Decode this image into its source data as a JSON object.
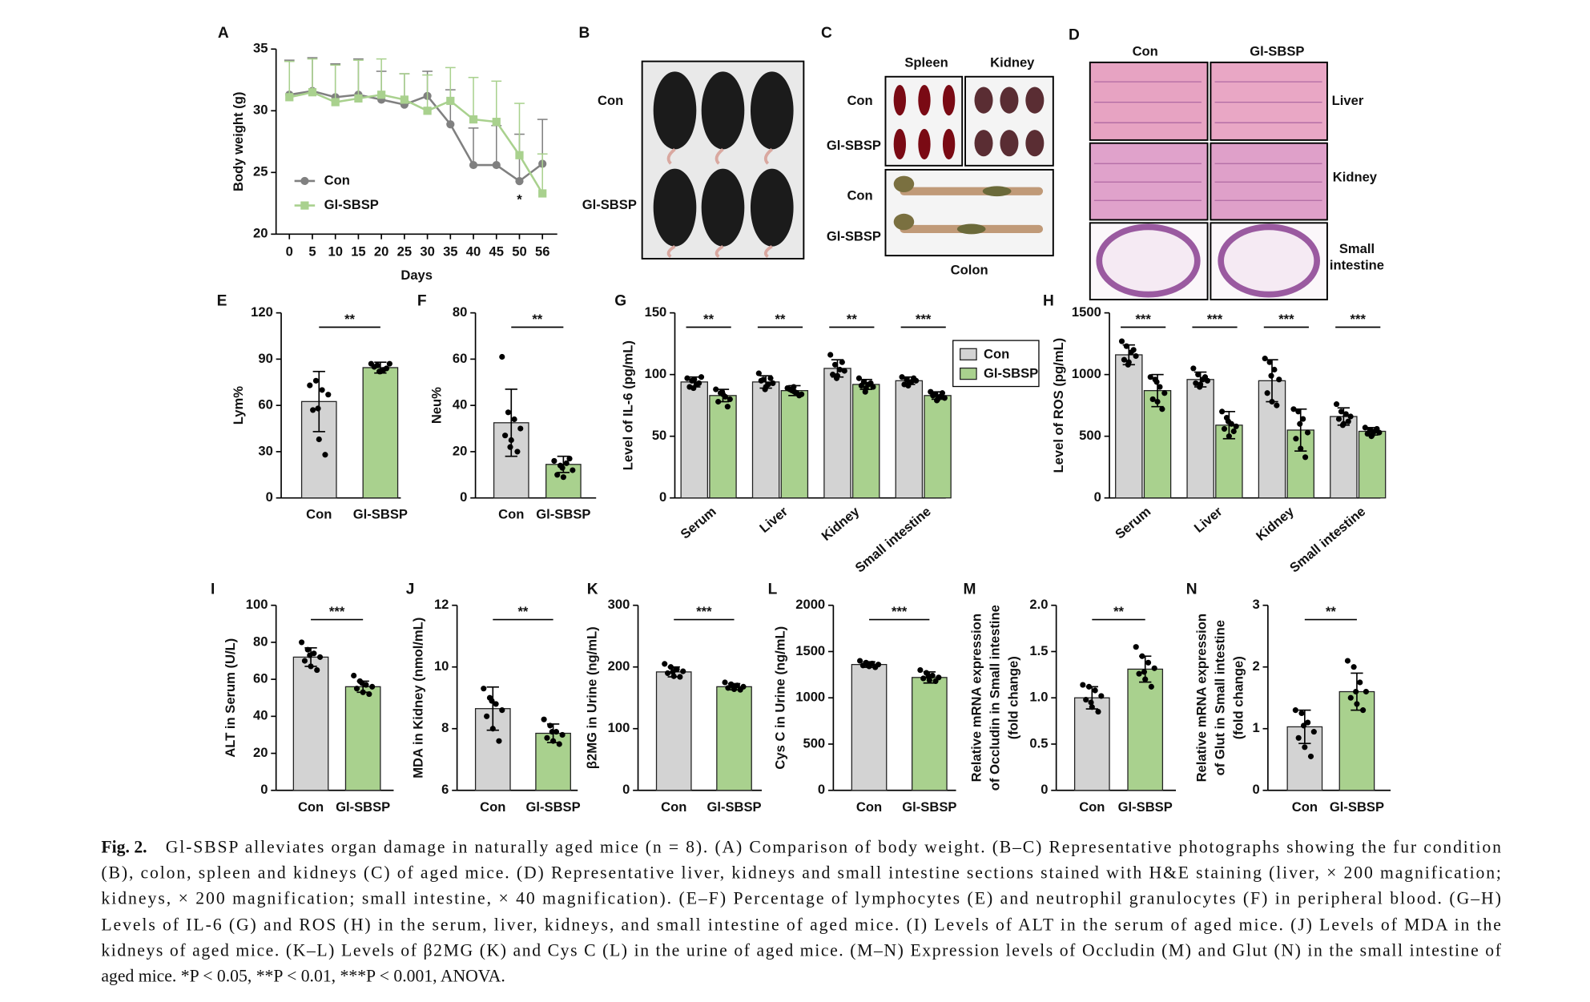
{
  "chart_data": [
    {
      "type": "line",
      "panel": "A",
      "ylabel": "Body weight (g)",
      "xlabel": "Days",
      "categories": [
        "0",
        "5",
        "10",
        "15",
        "20",
        "25",
        "30",
        "35",
        "40",
        "45",
        "50",
        "56"
      ],
      "ylim": [
        20,
        35
      ],
      "yticks": [
        20,
        25,
        30,
        35
      ],
      "annotation": "*",
      "series": [
        {
          "name": "Con",
          "color": "#808080",
          "values": [
            31.3,
            31.6,
            31.1,
            31.3,
            30.9,
            30.5,
            31.2,
            28.9,
            25.6,
            25.6,
            24.3,
            25.7
          ],
          "errors": [
            2.8,
            2.7,
            2.7,
            2.9,
            2.3,
            2.5,
            2.0,
            2.8,
            3.0,
            3.2,
            3.8,
            3.6
          ]
        },
        {
          "name": "Gl-SBSP",
          "color": "#a9d18e",
          "values": [
            31.1,
            31.5,
            30.7,
            31.0,
            31.3,
            30.9,
            30.0,
            30.8,
            29.3,
            29.1,
            26.4,
            23.3
          ],
          "errors": [
            2.9,
            2.7,
            3.0,
            3.1,
            2.9,
            2.1,
            2.9,
            2.7,
            3.4,
            3.3,
            4.2,
            3.2
          ]
        }
      ]
    },
    {
      "type": "bar",
      "panel": "E",
      "ylabel": "Lym%",
      "categories": [
        "Con",
        "Gl-SBSP"
      ],
      "colors": [
        "#d3d3d3",
        "#a9d18e"
      ],
      "values": [
        62.5,
        84.5
      ],
      "errors": [
        19.5,
        3.5
      ],
      "points": [
        [
          73,
          76,
          70,
          67,
          57,
          38,
          28,
          58
        ],
        [
          87,
          86,
          83,
          87,
          85,
          82,
          84,
          82
        ]
      ],
      "ylim": [
        0,
        120
      ],
      "yticks": [
        0,
        30,
        60,
        90,
        120
      ],
      "significance": [
        "**"
      ]
    },
    {
      "type": "bar",
      "panel": "F",
      "ylabel": "Neu%",
      "categories": [
        "Con",
        "Gl-SBSP"
      ],
      "colors": [
        "#d3d3d3",
        "#a9d18e"
      ],
      "values": [
        32.5,
        14.5
      ],
      "errors": [
        14.5,
        3.5
      ],
      "points": [
        [
          61,
          37,
          34,
          30,
          27,
          25,
          20,
          22
        ],
        [
          16,
          14,
          15,
          12,
          10,
          9,
          17,
          13
        ]
      ],
      "ylim": [
        0,
        80
      ],
      "yticks": [
        0,
        20,
        40,
        60,
        80
      ],
      "significance": [
        "**"
      ]
    },
    {
      "type": "bar",
      "panel": "G",
      "ylabel": "Level of IL-6 (pg/mL)",
      "categories": [
        "Serum",
        "Liver",
        "Kidney",
        "Small intestine"
      ],
      "legend": true,
      "series": [
        {
          "name": "Con",
          "color": "#d3d3d3",
          "values": [
            94,
            94,
            105,
            95
          ],
          "errors": [
            4,
            5,
            7,
            3
          ],
          "points": [
            [
              97,
              95,
              92,
              98,
              90,
              96,
              93,
              89
            ],
            [
              101,
              96,
              92,
              93,
              95,
              90,
              97,
              88
            ],
            [
              116,
              108,
              104,
              103,
              100,
              99,
              110,
              97
            ],
            [
              98,
              96,
              94,
              95,
              92,
              93,
              97,
              91
            ]
          ]
        },
        {
          "name": "Gl-SBSP",
          "color": "#a9d18e",
          "values": [
            83,
            87,
            92,
            83
          ],
          "errors": [
            5,
            4,
            4,
            3
          ],
          "points": [
            [
              88,
              85,
              82,
              80,
              78,
              84,
              74,
              86
            ],
            [
              89,
              87,
              85,
              84,
              88,
              86,
              83,
              90
            ],
            [
              97,
              94,
              92,
              90,
              91,
              89,
              93,
              86
            ],
            [
              86,
              84,
              82,
              81,
              83,
              80,
              85,
              79
            ]
          ]
        }
      ],
      "ylim": [
        0,
        150
      ],
      "yticks": [
        0,
        50,
        100,
        150
      ],
      "significance": [
        "**",
        "**",
        "**",
        "***"
      ]
    },
    {
      "type": "bar",
      "panel": "H",
      "ylabel": "Level of ROS (pg/mL)",
      "categories": [
        "Serum",
        "Liver",
        "Kidney",
        "Small intestine"
      ],
      "series": [
        {
          "name": "Con",
          "color": "#d3d3d3",
          "values": [
            1160,
            960,
            950,
            660
          ],
          "errors": [
            80,
            60,
            170,
            70
          ],
          "points": [
            [
              1270,
              1230,
              1180,
              1150,
              1120,
              1100,
              1200,
              1080
            ],
            [
              1050,
              1000,
              960,
              950,
              930,
              920,
              980,
              900
            ],
            [
              1130,
              1100,
              1040,
              960,
              850,
              780,
              750,
              990
            ],
            [
              760,
              700,
              680,
              660,
              640,
              600,
              620,
              590
            ]
          ]
        },
        {
          "name": "Gl-SBSP",
          "color": "#a9d18e",
          "values": [
            870,
            590,
            550,
            540
          ],
          "errors": [
            130,
            110,
            170,
            30
          ],
          "points": [
            [
              980,
              960,
              900,
              850,
              800,
              780,
              720,
              940
            ],
            [
              700,
              650,
              600,
              580,
              560,
              500,
              540,
              620
            ],
            [
              720,
              700,
              640,
              530,
              480,
              400,
              330,
              600
            ],
            [
              570,
              550,
              540,
              530,
              520,
              510,
              560,
              500
            ]
          ]
        }
      ],
      "ylim": [
        0,
        1500
      ],
      "yticks": [
        0,
        500,
        1000,
        1500
      ],
      "significance": [
        "***",
        "***",
        "***",
        "***"
      ]
    },
    {
      "type": "bar",
      "panel": "I",
      "ylabel": "ALT in Serum (U/L)",
      "categories": [
        "Con",
        "Gl-SBSP"
      ],
      "colors": [
        "#d3d3d3",
        "#a9d18e"
      ],
      "values": [
        72,
        56
      ],
      "errors": [
        5,
        3
      ],
      "points": [
        [
          80,
          76,
          74,
          72,
          70,
          67,
          65,
          73
        ],
        [
          62,
          59,
          57,
          56,
          55,
          53,
          52,
          58
        ]
      ],
      "ylim": [
        0,
        100
      ],
      "yticks": [
        0,
        20,
        40,
        60,
        80,
        100
      ],
      "significance": [
        "***"
      ]
    },
    {
      "type": "bar",
      "panel": "J",
      "ylabel": "MDA in Kidney (nmol/mL)",
      "categories": [
        "Con",
        "Gl-SBSP"
      ],
      "colors": [
        "#d3d3d3",
        "#a9d18e"
      ],
      "values": [
        8.65,
        7.85
      ],
      "errors": [
        0.7,
        0.3
      ],
      "points": [
        [
          9.3,
          9.0,
          8.8,
          8.6,
          8.4,
          8.0,
          7.6,
          8.9
        ],
        [
          8.3,
          8.1,
          7.9,
          7.8,
          7.7,
          7.6,
          7.5,
          7.9
        ]
      ],
      "ylim": [
        6,
        12
      ],
      "yticks": [
        6,
        8,
        10,
        12
      ],
      "significance": [
        "**"
      ]
    },
    {
      "type": "bar",
      "panel": "K",
      "ylabel": "β2MG in Urine (ng/mL)",
      "categories": [
        "Con",
        "Gl-SBSP"
      ],
      "colors": [
        "#d3d3d3",
        "#a9d18e"
      ],
      "values": [
        192,
        168
      ],
      "errors": [
        8,
        5
      ],
      "points": [
        [
          205,
          200,
          196,
          193,
          190,
          185,
          184,
          192
        ],
        [
          175,
          172,
          170,
          168,
          166,
          164,
          163,
          169
        ]
      ],
      "ylim": [
        0,
        300
      ],
      "yticks": [
        0,
        100,
        200,
        300
      ],
      "significance": [
        "***"
      ]
    },
    {
      "type": "bar",
      "panel": "L",
      "ylabel": "Cys C in Urine (ng/mL)",
      "categories": [
        "Con",
        "Gl-SBSP"
      ],
      "colors": [
        "#d3d3d3",
        "#a9d18e"
      ],
      "values": [
        1360,
        1220
      ],
      "errors": [
        30,
        60
      ],
      "points": [
        [
          1400,
          1380,
          1370,
          1360,
          1350,
          1340,
          1330,
          1355
        ],
        [
          1300,
          1270,
          1240,
          1220,
          1210,
          1190,
          1180,
          1230
        ]
      ],
      "ylim": [
        0,
        2000
      ],
      "yticks": [
        0,
        500,
        1000,
        1500,
        2000
      ],
      "significance": [
        "***"
      ]
    },
    {
      "type": "bar",
      "panel": "M",
      "ylabel": [
        "Relative mRNA expression",
        "of Occludin in Small intestine",
        "(fold change)"
      ],
      "categories": [
        "Con",
        "Gl-SBSP"
      ],
      "colors": [
        "#d3d3d3",
        "#a9d18e"
      ],
      "values": [
        1.0,
        1.31
      ],
      "errors": [
        0.12,
        0.14
      ],
      "points": [
        [
          1.14,
          1.12,
          1.08,
          1.02,
          0.98,
          0.9,
          0.85,
          0.95
        ],
        [
          1.55,
          1.45,
          1.38,
          1.32,
          1.26,
          1.2,
          1.12,
          1.28
        ]
      ],
      "ylim": [
        0,
        2
      ],
      "yticks": [
        0,
        0.5,
        {
          "value": 1,
          "label": "1.0"
        },
        1.5,
        {
          "value": 2,
          "label": "2.0"
        }
      ],
      "significance": [
        "**"
      ]
    },
    {
      "type": "bar",
      "panel": "N",
      "ylabel": [
        "Relative mRNA expression",
        "of Glut in Small intestine",
        "(fold change)"
      ],
      "categories": [
        "Con",
        "Gl-SBSP"
      ],
      "colors": [
        "#d3d3d3",
        "#a9d18e"
      ],
      "values": [
        1.03,
        1.6
      ],
      "errors": [
        0.27,
        0.3
      ],
      "points": [
        [
          1.3,
          1.25,
          1.1,
          0.95,
          0.85,
          0.7,
          0.55,
          1.05
        ],
        [
          2.1,
          2.0,
          1.75,
          1.6,
          1.5,
          1.4,
          1.3,
          1.6
        ]
      ],
      "ylim": [
        0,
        3
      ],
      "yticks": [
        0,
        1,
        2,
        3
      ],
      "significance": [
        "**"
      ]
    }
  ],
  "photo_panels": [
    {
      "panel": "B",
      "row_labels": [
        "Con",
        "Gl-SBSP"
      ]
    },
    {
      "panel": "C",
      "column_labels": [
        "Spleen",
        "Kidney"
      ],
      "row_labels": [
        "Con",
        "Gl-SBSP",
        "Con",
        "Gl-SBSP"
      ],
      "caption": "Colon"
    },
    {
      "panel": "D",
      "column_labels": [
        "Con",
        "Gl-SBSP"
      ],
      "row_labels": [
        [
          "Liver"
        ],
        [
          "Kidney"
        ],
        [
          "Small",
          "intestine"
        ]
      ]
    }
  ],
  "caption": {
    "label": "Fig. 2.",
    "lines": [
      "Gl-SBSP alleviates organ damage in naturally aged mice (n = 8). (A) Comparison of body weight. (B–C) Representative photographs showing the fur condition",
      "(B), colon, spleen and kidneys (C) of aged mice. (D) Representative liver, kidneys and small intestine sections stained with H&E staining (liver, × 200 magnification;",
      "kidneys, × 200 magnification; small intestine, × 40 magnification). (E–F) Percentage of lymphocytes (E) and neutrophil granulocytes (F) in peripheral blood. (G–H)",
      "Levels of IL-6 (G) and ROS (H) in the serum, liver, kidneys, and small intestine of aged mice. (I) Levels of ALT in the serum of aged mice. (J) Levels of MDA in the",
      "kidneys of aged mice. (K–L) Levels of β2MG (K) and Cys C (L) in the urine of aged mice. (M–N) Expression levels of Occludin (M) and Glut (N) in the small intestine of",
      "aged mice. *P < 0.05, **P < 0.01, ***P < 0.001, ANOVA."
    ]
  }
}
